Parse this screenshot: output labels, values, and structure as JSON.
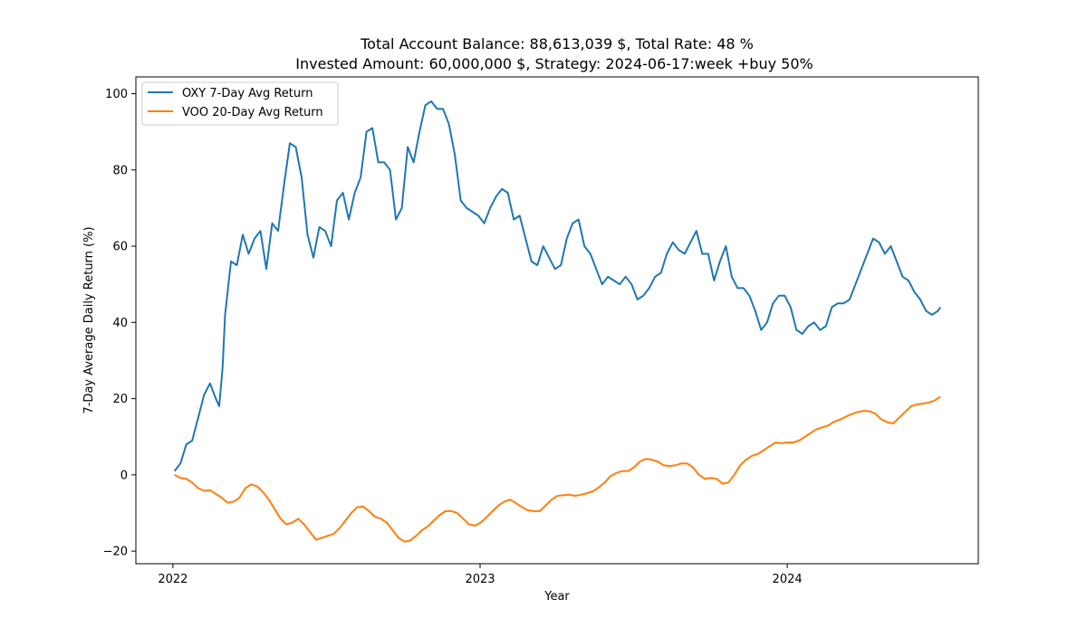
{
  "chart_data": {
    "type": "line",
    "title_line1": "Total Account Balance: 88,613,039 $, Total Rate: 48 %",
    "title_line2": "Invested Amount: 60,000,000 $, Strategy: 2024-06-17:week +buy 50%",
    "xlabel": "Year",
    "ylabel": "7-Day Average Daily Return (%)",
    "xlim": [
      "2021-11-18",
      "2024-08-15"
    ],
    "ylim": [
      -23.3,
      104.4
    ],
    "x_ticks": [
      {
        "date": "2022-01-01",
        "label": "2022"
      },
      {
        "date": "2023-01-01",
        "label": "2023"
      },
      {
        "date": "2024-01-01",
        "label": "2024"
      }
    ],
    "y_ticks": [
      {
        "value": -20,
        "label": "−20"
      },
      {
        "value": 0,
        "label": "0"
      },
      {
        "value": 20,
        "label": "20"
      },
      {
        "value": 40,
        "label": "40"
      },
      {
        "value": 60,
        "label": "60"
      },
      {
        "value": 80,
        "label": "80"
      },
      {
        "value": 100,
        "label": "100"
      }
    ],
    "legend_position": "top-left",
    "grid": false,
    "series": [
      {
        "name": "OXY 7-Day Avg Return",
        "color": "#1f77b4",
        "points": [
          [
            "2022-01-03",
            1
          ],
          [
            "2022-01-10",
            3
          ],
          [
            "2022-01-17",
            8
          ],
          [
            "2022-01-24",
            9
          ],
          [
            "2022-01-31",
            15
          ],
          [
            "2022-02-07",
            21
          ],
          [
            "2022-02-14",
            24
          ],
          [
            "2022-02-21",
            20
          ],
          [
            "2022-02-25",
            18
          ],
          [
            "2022-03-01",
            28
          ],
          [
            "2022-03-04",
            42
          ],
          [
            "2022-03-08",
            50
          ],
          [
            "2022-03-11",
            56
          ],
          [
            "2022-03-18",
            55
          ],
          [
            "2022-03-25",
            63
          ],
          [
            "2022-04-01",
            58
          ],
          [
            "2022-04-08",
            62
          ],
          [
            "2022-04-15",
            64
          ],
          [
            "2022-04-22",
            54
          ],
          [
            "2022-04-29",
            66
          ],
          [
            "2022-05-06",
            64
          ],
          [
            "2022-05-13",
            76
          ],
          [
            "2022-05-20",
            87
          ],
          [
            "2022-05-27",
            86
          ],
          [
            "2022-06-03",
            78
          ],
          [
            "2022-06-10",
            63
          ],
          [
            "2022-06-17",
            57
          ],
          [
            "2022-06-24",
            65
          ],
          [
            "2022-07-01",
            64
          ],
          [
            "2022-07-08",
            60
          ],
          [
            "2022-07-15",
            72
          ],
          [
            "2022-07-22",
            74
          ],
          [
            "2022-07-29",
            67
          ],
          [
            "2022-08-05",
            74
          ],
          [
            "2022-08-12",
            78
          ],
          [
            "2022-08-19",
            90
          ],
          [
            "2022-08-26",
            91
          ],
          [
            "2022-09-02",
            82
          ],
          [
            "2022-09-09",
            82
          ],
          [
            "2022-09-16",
            80
          ],
          [
            "2022-09-23",
            67
          ],
          [
            "2022-09-30",
            70
          ],
          [
            "2022-10-07",
            86
          ],
          [
            "2022-10-14",
            82
          ],
          [
            "2022-10-21",
            90
          ],
          [
            "2022-10-28",
            97
          ],
          [
            "2022-11-04",
            98
          ],
          [
            "2022-11-11",
            96
          ],
          [
            "2022-11-18",
            96
          ],
          [
            "2022-11-25",
            92
          ],
          [
            "2022-12-02",
            84
          ],
          [
            "2022-12-09",
            72
          ],
          [
            "2022-12-16",
            70
          ],
          [
            "2022-12-23",
            69
          ],
          [
            "2022-12-30",
            68
          ],
          [
            "2023-01-06",
            66
          ],
          [
            "2023-01-13",
            70
          ],
          [
            "2023-01-20",
            73
          ],
          [
            "2023-01-27",
            75
          ],
          [
            "2023-02-03",
            74
          ],
          [
            "2023-02-10",
            67
          ],
          [
            "2023-02-17",
            68
          ],
          [
            "2023-02-24",
            62
          ],
          [
            "2023-03-03",
            56
          ],
          [
            "2023-03-10",
            55
          ],
          [
            "2023-03-17",
            60
          ],
          [
            "2023-03-24",
            57
          ],
          [
            "2023-03-31",
            54
          ],
          [
            "2023-04-07",
            55
          ],
          [
            "2023-04-14",
            62
          ],
          [
            "2023-04-21",
            66
          ],
          [
            "2023-04-28",
            67
          ],
          [
            "2023-05-05",
            60
          ],
          [
            "2023-05-12",
            58
          ],
          [
            "2023-05-19",
            54
          ],
          [
            "2023-05-26",
            50
          ],
          [
            "2023-06-02",
            52
          ],
          [
            "2023-06-09",
            51
          ],
          [
            "2023-06-16",
            50
          ],
          [
            "2023-06-23",
            52
          ],
          [
            "2023-06-30",
            50
          ],
          [
            "2023-07-07",
            46
          ],
          [
            "2023-07-14",
            47
          ],
          [
            "2023-07-21",
            49
          ],
          [
            "2023-07-28",
            52
          ],
          [
            "2023-08-04",
            53
          ],
          [
            "2023-08-11",
            58
          ],
          [
            "2023-08-18",
            61
          ],
          [
            "2023-08-25",
            59
          ],
          [
            "2023-09-01",
            58
          ],
          [
            "2023-09-08",
            61
          ],
          [
            "2023-09-15",
            64
          ],
          [
            "2023-09-22",
            58
          ],
          [
            "2023-09-29",
            58
          ],
          [
            "2023-10-06",
            51
          ],
          [
            "2023-10-13",
            56
          ],
          [
            "2023-10-20",
            60
          ],
          [
            "2023-10-27",
            52
          ],
          [
            "2023-11-03",
            49
          ],
          [
            "2023-11-10",
            49
          ],
          [
            "2023-11-17",
            47
          ],
          [
            "2023-11-24",
            43
          ],
          [
            "2023-12-01",
            38
          ],
          [
            "2023-12-08",
            40
          ],
          [
            "2023-12-15",
            45
          ],
          [
            "2023-12-22",
            47
          ],
          [
            "2023-12-29",
            47
          ],
          [
            "2024-01-05",
            44
          ],
          [
            "2024-01-12",
            38
          ],
          [
            "2024-01-19",
            37
          ],
          [
            "2024-01-26",
            39
          ],
          [
            "2024-02-02",
            40
          ],
          [
            "2024-02-09",
            38
          ],
          [
            "2024-02-16",
            39
          ],
          [
            "2024-02-23",
            44
          ],
          [
            "2024-03-01",
            45
          ],
          [
            "2024-03-08",
            45
          ],
          [
            "2024-03-15",
            46
          ],
          [
            "2024-03-22",
            50
          ],
          [
            "2024-03-29",
            54
          ],
          [
            "2024-04-05",
            58
          ],
          [
            "2024-04-12",
            62
          ],
          [
            "2024-04-19",
            61
          ],
          [
            "2024-04-26",
            58
          ],
          [
            "2024-05-03",
            60
          ],
          [
            "2024-05-10",
            56
          ],
          [
            "2024-05-17",
            52
          ],
          [
            "2024-05-24",
            51
          ],
          [
            "2024-05-31",
            48
          ],
          [
            "2024-06-07",
            46
          ],
          [
            "2024-06-14",
            43
          ],
          [
            "2024-06-21",
            42
          ],
          [
            "2024-06-28",
            43
          ],
          [
            "2024-07-01",
            44
          ]
        ]
      },
      {
        "name": "VOO 20-Day Avg Return",
        "color": "#ff7f0e",
        "points": [
          [
            "2022-01-03",
            0
          ],
          [
            "2022-01-10",
            -0.8
          ],
          [
            "2022-01-17",
            -1
          ],
          [
            "2022-01-24",
            -2
          ],
          [
            "2022-01-31",
            -3.5
          ],
          [
            "2022-02-07",
            -4.2
          ],
          [
            "2022-02-14",
            -4
          ],
          [
            "2022-02-21",
            -5
          ],
          [
            "2022-02-28",
            -6
          ],
          [
            "2022-03-07",
            -7.3
          ],
          [
            "2022-03-14",
            -7
          ],
          [
            "2022-03-21",
            -6
          ],
          [
            "2022-03-28",
            -3.5
          ],
          [
            "2022-04-04",
            -2.5
          ],
          [
            "2022-04-11",
            -3
          ],
          [
            "2022-04-18",
            -4.5
          ],
          [
            "2022-04-25",
            -6.5
          ],
          [
            "2022-05-02",
            -9
          ],
          [
            "2022-05-09",
            -11.5
          ],
          [
            "2022-05-16",
            -13
          ],
          [
            "2022-05-23",
            -12.5
          ],
          [
            "2022-05-30",
            -11.5
          ],
          [
            "2022-06-06",
            -13
          ],
          [
            "2022-06-13",
            -15
          ],
          [
            "2022-06-20",
            -17
          ],
          [
            "2022-06-27",
            -16.5
          ],
          [
            "2022-07-04",
            -16
          ],
          [
            "2022-07-11",
            -15.5
          ],
          [
            "2022-07-18",
            -14
          ],
          [
            "2022-07-25",
            -12
          ],
          [
            "2022-08-01",
            -10
          ],
          [
            "2022-08-08",
            -8.5
          ],
          [
            "2022-08-15",
            -8.3
          ],
          [
            "2022-08-22",
            -9.5
          ],
          [
            "2022-08-29",
            -11
          ],
          [
            "2022-09-05",
            -11.5
          ],
          [
            "2022-09-12",
            -12.5
          ],
          [
            "2022-09-19",
            -14.5
          ],
          [
            "2022-09-26",
            -16.5
          ],
          [
            "2022-10-03",
            -17.5
          ],
          [
            "2022-10-10",
            -17.2
          ],
          [
            "2022-10-17",
            -16
          ],
          [
            "2022-10-24",
            -14.5
          ],
          [
            "2022-10-31",
            -13.5
          ],
          [
            "2022-11-07",
            -12
          ],
          [
            "2022-11-14",
            -10.5
          ],
          [
            "2022-11-21",
            -9.5
          ],
          [
            "2022-11-28",
            -9.5
          ],
          [
            "2022-12-05",
            -10
          ],
          [
            "2022-12-12",
            -11.5
          ],
          [
            "2022-12-19",
            -13
          ],
          [
            "2022-12-26",
            -13.3
          ],
          [
            "2023-01-02",
            -12.5
          ],
          [
            "2023-01-09",
            -11
          ],
          [
            "2023-01-16",
            -9.5
          ],
          [
            "2023-01-23",
            -8
          ],
          [
            "2023-01-30",
            -7
          ],
          [
            "2023-02-06",
            -6.5
          ],
          [
            "2023-02-13",
            -7.5
          ],
          [
            "2023-02-20",
            -8.5
          ],
          [
            "2023-02-27",
            -9.3
          ],
          [
            "2023-03-06",
            -9.5
          ],
          [
            "2023-03-13",
            -9.5
          ],
          [
            "2023-03-20",
            -8
          ],
          [
            "2023-03-27",
            -6.5
          ],
          [
            "2023-04-03",
            -5.5
          ],
          [
            "2023-04-10",
            -5.3
          ],
          [
            "2023-04-17",
            -5.2
          ],
          [
            "2023-04-24",
            -5.5
          ],
          [
            "2023-05-01",
            -5.2
          ],
          [
            "2023-05-08",
            -4.8
          ],
          [
            "2023-05-15",
            -4.3
          ],
          [
            "2023-05-22",
            -3.3
          ],
          [
            "2023-05-29",
            -2
          ],
          [
            "2023-06-05",
            -0.3
          ],
          [
            "2023-06-12",
            0.5
          ],
          [
            "2023-06-19",
            1
          ],
          [
            "2023-06-26",
            1
          ],
          [
            "2023-07-03",
            2
          ],
          [
            "2023-07-10",
            3.5
          ],
          [
            "2023-07-17",
            4.2
          ],
          [
            "2023-07-24",
            4
          ],
          [
            "2023-07-31",
            3.5
          ],
          [
            "2023-08-07",
            2.5
          ],
          [
            "2023-08-14",
            2.3
          ],
          [
            "2023-08-21",
            2.5
          ],
          [
            "2023-08-28",
            3
          ],
          [
            "2023-09-04",
            3
          ],
          [
            "2023-09-11",
            2
          ],
          [
            "2023-09-18",
            0
          ],
          [
            "2023-09-25",
            -1
          ],
          [
            "2023-10-02",
            -0.8
          ],
          [
            "2023-10-09",
            -1
          ],
          [
            "2023-10-16",
            -2.3
          ],
          [
            "2023-10-23",
            -2
          ],
          [
            "2023-10-30",
            0
          ],
          [
            "2023-11-06",
            2.5
          ],
          [
            "2023-11-13",
            4
          ],
          [
            "2023-11-20",
            5
          ],
          [
            "2023-11-27",
            5.5
          ],
          [
            "2023-12-04",
            6.5
          ],
          [
            "2023-12-11",
            7.5
          ],
          [
            "2023-12-18",
            8.5
          ],
          [
            "2023-12-25",
            8.3
          ],
          [
            "2024-01-01",
            8.5
          ],
          [
            "2024-01-08",
            8.5
          ],
          [
            "2024-01-15",
            9
          ],
          [
            "2024-01-22",
            10
          ],
          [
            "2024-01-29",
            11
          ],
          [
            "2024-02-05",
            12
          ],
          [
            "2024-02-12",
            12.5
          ],
          [
            "2024-02-19",
            13
          ],
          [
            "2024-02-26",
            14
          ],
          [
            "2024-03-04",
            14.5
          ],
          [
            "2024-03-11",
            15.3
          ],
          [
            "2024-03-18",
            16
          ],
          [
            "2024-03-25",
            16.5
          ],
          [
            "2024-04-01",
            16.8
          ],
          [
            "2024-04-08",
            16.7
          ],
          [
            "2024-04-15",
            16
          ],
          [
            "2024-04-22",
            14.5
          ],
          [
            "2024-04-29",
            13.8
          ],
          [
            "2024-05-06",
            13.5
          ],
          [
            "2024-05-13",
            15
          ],
          [
            "2024-05-20",
            16.5
          ],
          [
            "2024-05-27",
            18
          ],
          [
            "2024-06-03",
            18.5
          ],
          [
            "2024-06-10",
            18.7
          ],
          [
            "2024-06-17",
            19
          ],
          [
            "2024-06-24",
            19.5
          ],
          [
            "2024-07-01",
            20.5
          ]
        ]
      }
    ]
  }
}
